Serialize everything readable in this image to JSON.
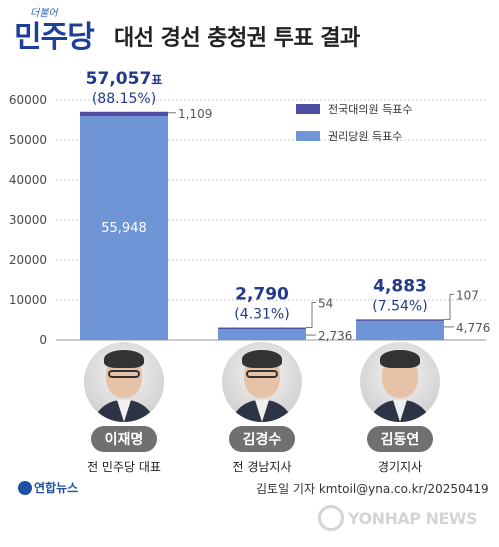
{
  "header": {
    "logo_small": "더불어",
    "logo_main": "민주당",
    "title": "대선 경선 충청권 투표 결과"
  },
  "chart_data": {
    "type": "bar",
    "stacked": true,
    "categories": [
      "이재명",
      "김경수",
      "김동연"
    ],
    "series": [
      {
        "name": "권리당원 득표수",
        "values": [
          55948,
          2736,
          4776
        ],
        "color": "#6f95d6"
      },
      {
        "name": "전국대의원 득표수",
        "values": [
          1109,
          54,
          107
        ],
        "color": "#4e4fa3"
      }
    ],
    "totals": [
      "57,057",
      "2,790",
      "4,883"
    ],
    "total_unit": "표",
    "percents": [
      "(88.15%)",
      "(4.31%)",
      "(7.54%)"
    ],
    "segment_labels": {
      "member": [
        "55,948",
        "2,736",
        "4,776"
      ],
      "delegate": [
        "1,109",
        "54",
        "107"
      ]
    },
    "yticks": [
      0,
      10000,
      20000,
      30000,
      40000,
      50000,
      60000
    ],
    "ylim": [
      0,
      60000
    ],
    "grid": true,
    "legend_position": "top-right",
    "legend_order": [
      "전국대의원 득표수",
      "권리당원 득표수"
    ],
    "total_color": "#233a8c",
    "axis_text_color": "#4a4a4a"
  },
  "candidates": [
    {
      "name": "이재명",
      "role": "전 민주당 대표"
    },
    {
      "name": "김경수",
      "role": "전 경남지사"
    },
    {
      "name": "김동연",
      "role": "경기지사"
    }
  ],
  "footer": {
    "agency": "연합뉴스",
    "credit": "김토일 기자 kmtoil@yna.co.kr/20250419",
    "watermark": "YONHAP NEWS"
  }
}
